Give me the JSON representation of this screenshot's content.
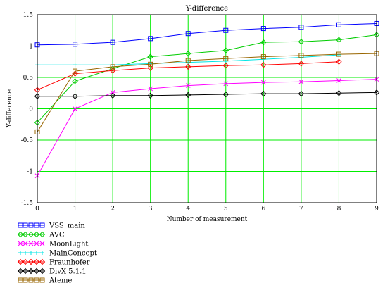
{
  "chart_data": {
    "type": "line",
    "title": "Y-difference",
    "xlabel": "Number of measurement",
    "ylabel": "Y-difference",
    "xlim": [
      0,
      9
    ],
    "ylim": [
      -1.5,
      1.5
    ],
    "x_ticks": [
      "0",
      "1",
      "2",
      "3",
      "4",
      "5",
      "6",
      "7",
      "8",
      "9"
    ],
    "y_ticks": [
      "1.5",
      "1",
      "0.5",
      "0",
      "-0.5",
      "-1",
      "-1.5"
    ],
    "y_tick_values": [
      1.5,
      1,
      0.5,
      0,
      -0.5,
      -1,
      -1.5
    ],
    "grid": true,
    "legend_position": "bottom-left",
    "series": [
      {
        "name": "VSS_main",
        "color": "#0000ff",
        "marker": "square",
        "x": [
          0,
          1,
          2,
          3,
          4,
          5,
          6,
          7,
          8,
          9
        ],
        "values": [
          1.02,
          1.03,
          1.06,
          1.12,
          1.2,
          1.25,
          1.28,
          1.3,
          1.34,
          1.36
        ]
      },
      {
        "name": "AVC",
        "color": "#00cc00",
        "marker": "diamond",
        "x": [
          0,
          1,
          2,
          3,
          4,
          5,
          6,
          7,
          8,
          9
        ],
        "values": [
          -0.22,
          0.44,
          0.64,
          0.83,
          0.88,
          0.93,
          1.06,
          1.07,
          1.1,
          1.18
        ]
      },
      {
        "name": "MoonLight",
        "color": "#ff00ff",
        "marker": "x",
        "x": [
          0,
          1,
          2,
          3,
          4,
          5,
          6,
          7,
          8,
          9
        ],
        "values": [
          -1.07,
          0.0,
          0.26,
          0.32,
          0.37,
          0.4,
          0.42,
          0.43,
          0.45,
          0.47
        ]
      },
      {
        "name": "MainConcept",
        "color": "#00e5e5",
        "marker": "plus",
        "x": [
          0,
          1,
          2,
          3,
          4,
          5,
          6,
          7,
          8
        ],
        "values": [
          0.7,
          0.7,
          0.7,
          0.72,
          0.74,
          0.76,
          0.79,
          0.82,
          0.86
        ]
      },
      {
        "name": "Fraunhofer",
        "color": "#ff0000",
        "marker": "diamond",
        "x": [
          0,
          1,
          2,
          3,
          4,
          5,
          6,
          7,
          8
        ],
        "values": [
          0.3,
          0.56,
          0.61,
          0.65,
          0.67,
          0.69,
          0.7,
          0.72,
          0.75
        ]
      },
      {
        "name": "DivX 5.1.1",
        "color": "#000000",
        "marker": "diamond",
        "x": [
          0,
          1,
          2,
          3,
          4,
          5,
          6,
          7,
          8,
          9
        ],
        "values": [
          0.2,
          0.2,
          0.21,
          0.21,
          0.22,
          0.23,
          0.24,
          0.24,
          0.25,
          0.26
        ]
      },
      {
        "name": "Ateme",
        "color": "#996600",
        "marker": "square",
        "x": [
          0,
          1,
          2,
          3,
          4,
          5,
          6,
          7,
          8,
          9
        ],
        "values": [
          -0.37,
          0.6,
          0.67,
          0.71,
          0.77,
          0.8,
          0.83,
          0.85,
          0.87,
          0.88
        ]
      }
    ]
  }
}
